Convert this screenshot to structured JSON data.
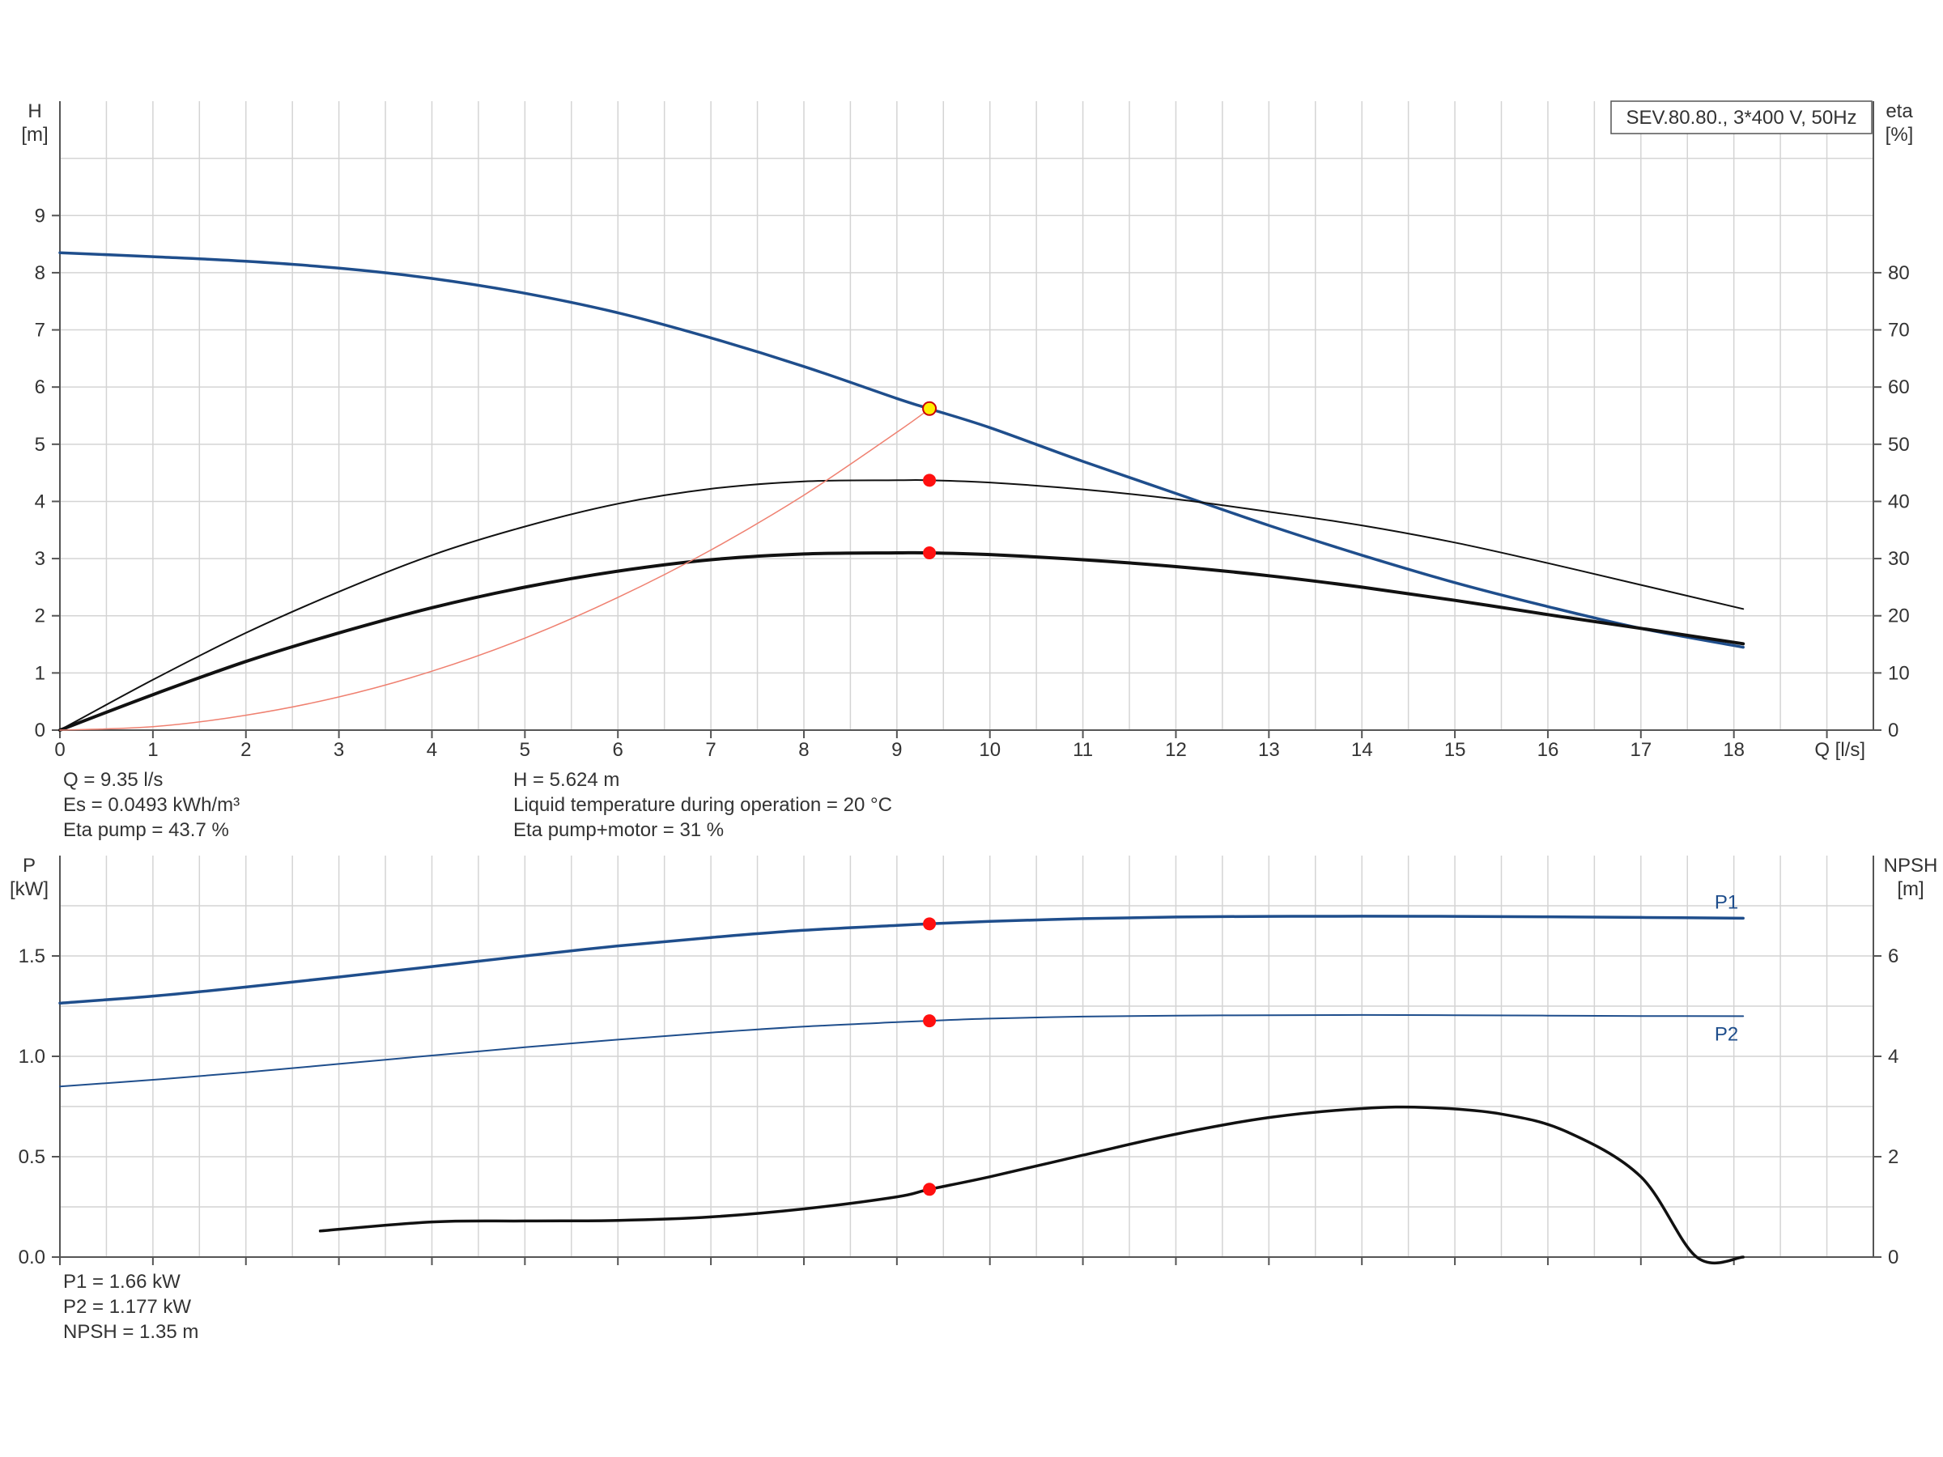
{
  "title": "SEV.80.80., 3*400 V, 50Hz",
  "colors": {
    "blue": "#1f4e8c",
    "black": "#111111",
    "pink": "#ef8070",
    "marker": "#ff1010",
    "marker_op": "#ffee00",
    "grid": "#d4d4d4"
  },
  "chart_data": [
    {
      "type": "line",
      "name": "head-efficiency",
      "xlabel": "Q [l/s]",
      "ylabel_left": [
        "H",
        "[m]"
      ],
      "ylabel_right": [
        "eta",
        "[%]"
      ],
      "xlim": [
        0,
        19.5
      ],
      "ylim_left": [
        0,
        11
      ],
      "ylim_right": [
        0,
        110
      ],
      "xticks": [
        0,
        1,
        2,
        3,
        4,
        5,
        6,
        7,
        8,
        9,
        10,
        11,
        12,
        13,
        14,
        15,
        16,
        17,
        18
      ],
      "yticks_left": [
        0,
        1,
        2,
        3,
        4,
        5,
        6,
        7,
        8,
        9
      ],
      "yticks_right": [
        0,
        10,
        20,
        30,
        40,
        50,
        60,
        70,
        80
      ],
      "grid": true,
      "series": [
        {
          "name": "H",
          "axis": "left",
          "color": "#1f4e8c",
          "width": 3.5,
          "x": [
            0,
            1,
            2,
            3,
            4,
            5,
            6,
            7,
            8,
            9,
            9.35,
            10,
            11,
            12,
            13,
            14,
            15,
            16,
            17,
            18.1
          ],
          "y": [
            8.35,
            8.28,
            8.2,
            8.08,
            7.9,
            7.64,
            7.3,
            6.86,
            6.36,
            5.8,
            5.62,
            5.29,
            4.7,
            4.14,
            3.58,
            3.06,
            2.58,
            2.16,
            1.78,
            1.45
          ]
        },
        {
          "name": "Eta pump",
          "axis": "right",
          "color": "#111111",
          "width": 2,
          "x": [
            0,
            1,
            2,
            3,
            4,
            5,
            6,
            7,
            8,
            9,
            9.35,
            10,
            11,
            12,
            13,
            14,
            15,
            16,
            17,
            18.1
          ],
          "y": [
            0,
            8.8,
            17,
            24.2,
            30.6,
            35.6,
            39.6,
            42.2,
            43.5,
            43.7,
            43.7,
            43.3,
            42.1,
            40.4,
            38.2,
            35.8,
            32.8,
            29.2,
            25.4,
            21.2
          ]
        },
        {
          "name": "Eta pump+motor",
          "axis": "right",
          "color": "#111111",
          "width": 4,
          "x": [
            0,
            1,
            2,
            3,
            4,
            5,
            6,
            7,
            8,
            9,
            9.35,
            10,
            11,
            12,
            13,
            14,
            15,
            16,
            17,
            18.1
          ],
          "y": [
            0,
            6.2,
            12,
            17,
            21.4,
            25,
            27.8,
            29.8,
            30.8,
            31,
            31,
            30.7,
            29.8,
            28.6,
            27,
            25,
            22.7,
            20.2,
            17.8,
            15.1
          ]
        },
        {
          "name": "System curve",
          "axis": "left",
          "color": "#ef8070",
          "width": 1.5,
          "x": [
            0,
            1,
            2,
            3,
            4,
            5,
            6,
            7,
            8,
            9,
            9.35
          ],
          "y": [
            0,
            0.06,
            0.26,
            0.58,
            1.03,
            1.61,
            2.32,
            3.15,
            4.11,
            5.21,
            5.62
          ]
        }
      ],
      "points": [
        {
          "x": 9.35,
          "y": 5.624,
          "axis": "left",
          "fill": "#ffee00",
          "stroke": "#cc0000",
          "r": 8
        },
        {
          "x": 9.35,
          "y": 43.7,
          "axis": "right",
          "fill": "#ff1010",
          "stroke": "#ff1010",
          "r": 7
        },
        {
          "x": 9.35,
          "y": 31,
          "axis": "right",
          "fill": "#ff1010",
          "stroke": "#ff1010",
          "r": 7
        }
      ]
    },
    {
      "type": "line",
      "name": "power-npsh",
      "xlabel": "",
      "ylabel_left": [
        "P",
        "[kW]"
      ],
      "ylabel_right": [
        "NPSH",
        "[m]"
      ],
      "xlim": [
        0,
        19.5
      ],
      "ylim_left": [
        0,
        2
      ],
      "ylim_right": [
        0,
        8
      ],
      "xticks": [
        0,
        1,
        2,
        3,
        4,
        5,
        6,
        7,
        8,
        9,
        10,
        11,
        12,
        13,
        14,
        15,
        16,
        17,
        18
      ],
      "yticks_left": [
        "0.0",
        "0.5",
        "1.0",
        "1.5"
      ],
      "yticks_right": [
        0,
        2,
        4,
        6
      ],
      "grid": true,
      "series": [
        {
          "name": "P1",
          "axis": "left",
          "color": "#1f4e8c",
          "width": 3.5,
          "label": "P1",
          "label_pos": "above",
          "x": [
            0,
            1,
            2,
            3,
            4,
            5,
            6,
            7,
            8,
            9,
            9.35,
            10,
            11,
            12,
            13,
            14,
            15,
            16,
            17,
            18.1
          ],
          "y": [
            1.265,
            1.3,
            1.345,
            1.395,
            1.447,
            1.5,
            1.55,
            1.592,
            1.628,
            1.652,
            1.66,
            1.672,
            1.686,
            1.694,
            1.697,
            1.698,
            1.697,
            1.695,
            1.692,
            1.688
          ]
        },
        {
          "name": "P2",
          "axis": "left",
          "color": "#1f4e8c",
          "width": 2,
          "label": "P2",
          "label_pos": "below",
          "x": [
            0,
            1,
            2,
            3,
            4,
            5,
            6,
            7,
            8,
            9,
            9.35,
            10,
            11,
            12,
            13,
            14,
            15,
            16,
            17,
            18.1
          ],
          "y": [
            0.85,
            0.883,
            0.92,
            0.962,
            1.004,
            1.045,
            1.083,
            1.118,
            1.148,
            1.17,
            1.177,
            1.188,
            1.198,
            1.203,
            1.205,
            1.206,
            1.205,
            1.203,
            1.201,
            1.2
          ]
        },
        {
          "name": "NPSH",
          "axis": "right",
          "color": "#111111",
          "width": 3.5,
          "x": [
            2.8,
            4,
            5,
            6,
            7,
            8,
            9,
            9.35,
            10,
            11,
            12,
            13,
            14,
            14.7,
            15.5,
            16.2,
            17,
            17.6,
            18.1
          ],
          "y": [
            0.52,
            0.7,
            0.72,
            0.73,
            0.8,
            0.96,
            1.2,
            1.35,
            1.6,
            2.03,
            2.45,
            2.78,
            2.96,
            2.98,
            2.85,
            2.5,
            1.6,
            0,
            0
          ]
        }
      ],
      "points": [
        {
          "x": 9.35,
          "y": 1.66,
          "axis": "left",
          "fill": "#ff1010",
          "stroke": "#ff1010",
          "r": 7
        },
        {
          "x": 9.35,
          "y": 1.177,
          "axis": "left",
          "fill": "#ff1010",
          "stroke": "#ff1010",
          "r": 7
        },
        {
          "x": 9.35,
          "y": 1.35,
          "axis": "right",
          "fill": "#ff1010",
          "stroke": "#ff1010",
          "r": 7
        }
      ]
    }
  ],
  "info_top": {
    "left": [
      "Q = 9.35 l/s",
      "Es = 0.0493 kWh/m³",
      "Eta pump = 43.7 %"
    ],
    "right": [
      "H = 5.624 m",
      "Liquid temperature during operation = 20 °C",
      "Eta pump+motor = 31 %"
    ]
  },
  "info_bottom": [
    "P1 = 1.66 kW",
    "P2 = 1.177 kW",
    "NPSH = 1.35 m"
  ]
}
